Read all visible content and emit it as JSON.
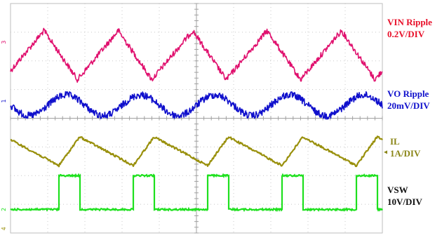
{
  "chart_data": {
    "type": "line",
    "title": "",
    "xlabel": "",
    "ylabel": "",
    "grid": true,
    "grid_divisions": {
      "horizontal": 10,
      "vertical": 8
    },
    "switching_cycles_shown": 5,
    "series": [
      {
        "name": "VIN Ripple",
        "scale": "0.2V/DIV",
        "color": "#e0106e",
        "marker": "3",
        "waveform": "triangle with noise",
        "peaks_x_div": [
          0.5,
          4.0,
          6.0,
          8.0,
          10.0
        ],
        "peak_y_div": 1.2,
        "trough_y_div": -0.7
      },
      {
        "name": "VO Ripple",
        "scale": "20mV/DIV",
        "color": "#1010cc",
        "marker": "1",
        "waveform": "rounded triangle with noise",
        "amplitude_div": 0.4
      },
      {
        "name": "IL",
        "scale": "1A/DIV",
        "color": "#99900c",
        "marker": "◂",
        "waveform": "sawtooth",
        "peak_y_div": 0.5,
        "valley_y_div": -0.5
      },
      {
        "name": "VSW",
        "scale": "10V/DIV",
        "color": "#1ee01e",
        "marker": "2",
        "waveform": "square pulse",
        "high_y_div": 1.0,
        "low_y_div": 0.0,
        "duty_fraction": 0.28
      }
    ],
    "channel_labels": [
      {
        "line1": "VIN Ripple",
        "line2": "0.2V/DIV",
        "color": "#e8102a"
      },
      {
        "line1": "VO Ripple",
        "line2": "20mV/DIV",
        "color": "#1010cc"
      },
      {
        "line1": "IL",
        "line2": "1A/DIV",
        "color": "#8a8516"
      },
      {
        "line1": "VSW",
        "line2": "10V/DIV",
        "color": "#111111"
      }
    ],
    "ground_markers": [
      {
        "text": "3",
        "color": "#e0106e"
      },
      {
        "text": "1",
        "color": "#1010cc"
      },
      {
        "text": "2",
        "color": "#1ee01e"
      },
      {
        "text": "4",
        "color": "#99900c"
      }
    ],
    "il_marker": {
      "text": "◂",
      "color": "#8a8516"
    }
  }
}
